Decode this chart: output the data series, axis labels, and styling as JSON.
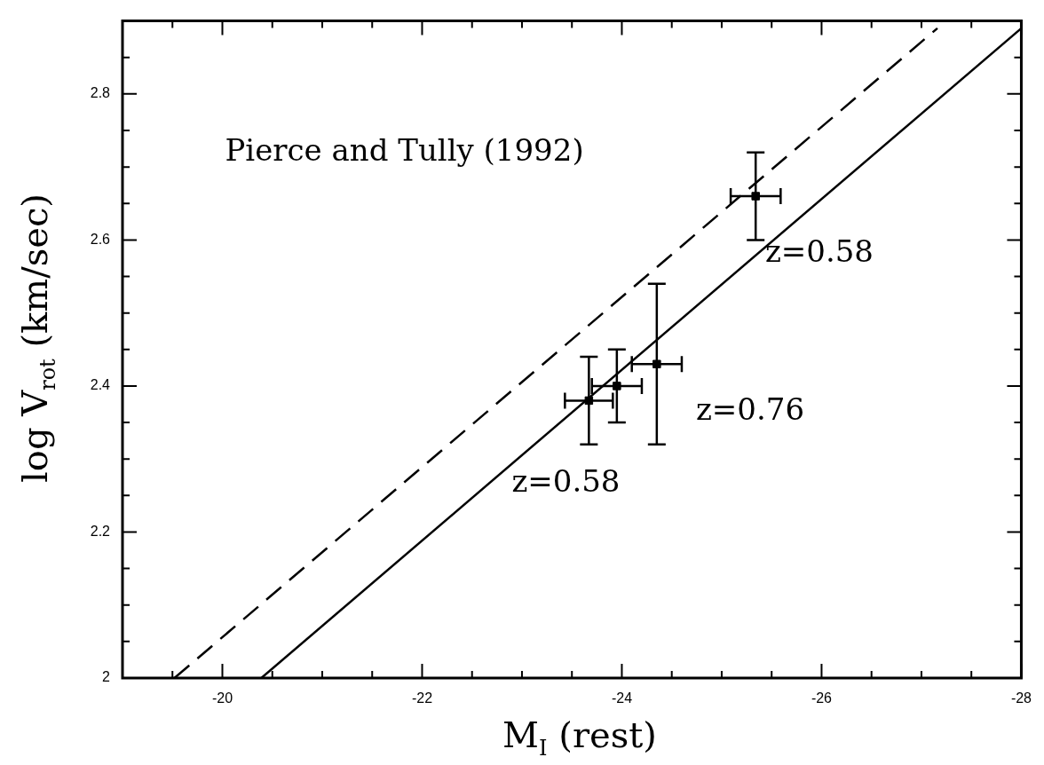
{
  "chart_data": {
    "type": "scatter",
    "xlabel": "M$_{I}$ (rest)",
    "ylabel": "log V$_{rot}$ (km/sec)",
    "xlim": [
      -19,
      -28
    ],
    "ylim": [
      2,
      2.9
    ],
    "xticks": [
      {
        "value": -19.5,
        "label": null
      },
      -20,
      {
        "value": -20.5,
        "label": null
      },
      {
        "value": -21,
        "label": null
      },
      {
        "value": -21.5,
        "label": null
      },
      -22,
      {
        "value": -22.5,
        "label": null
      },
      {
        "value": -23,
        "label": null
      },
      {
        "value": -23.5,
        "label": null
      },
      -24,
      {
        "value": -24.5,
        "label": null
      },
      {
        "value": -25,
        "label": null
      },
      {
        "value": -25.5,
        "label": null
      },
      -26,
      {
        "value": -26.5,
        "label": null
      },
      {
        "value": -27,
        "label": null
      },
      {
        "value": -27.5,
        "label": null
      },
      -28
    ],
    "yticks": [
      2,
      {
        "value": 2.05,
        "label": null
      },
      {
        "value": 2.1,
        "label": null
      },
      {
        "value": 2.15,
        "label": null
      },
      2.2,
      {
        "value": 2.25,
        "label": null
      },
      {
        "value": 2.3,
        "label": null
      },
      {
        "value": 2.35,
        "label": null
      },
      2.4,
      {
        "value": 2.45,
        "label": null
      },
      {
        "value": 2.5,
        "label": null
      },
      {
        "value": 2.55,
        "label": null
      },
      2.6,
      {
        "value": 2.65,
        "label": null
      },
      {
        "value": 2.7,
        "label": null
      },
      {
        "value": 2.75,
        "label": null
      },
      2.8,
      {
        "value": 2.85,
        "label": null
      }
    ],
    "grid": false,
    "legend": false,
    "marker": "square",
    "series": [
      {
        "color": "#000000",
        "x": [
          -23.67,
          -23.95,
          -24.35,
          -25.34
        ],
        "values": [
          2.38,
          2.4,
          2.43,
          2.66
        ],
        "errors": [
          0.06,
          0.05,
          0.11,
          0.06
        ],
        "xerrors": [
          0.24,
          0.25,
          0.25,
          0.25
        ]
      },
      {
        "type": "line",
        "color": "#000000",
        "line_style": "solid",
        "marker": "none",
        "x": [
          -20.39,
          -28
        ],
        "values": [
          2,
          2.89
        ]
      },
      {
        "type": "line",
        "color": "#000000",
        "line_style": "dashed",
        "marker": "none",
        "x": [
          -19.52,
          -27.16
        ],
        "values": [
          2,
          2.89
        ]
      }
    ],
    "annotations": [
      "Pierce and Tully (1992)",
      "z=0.58",
      "z=0.76",
      "z=0.58"
    ]
  }
}
